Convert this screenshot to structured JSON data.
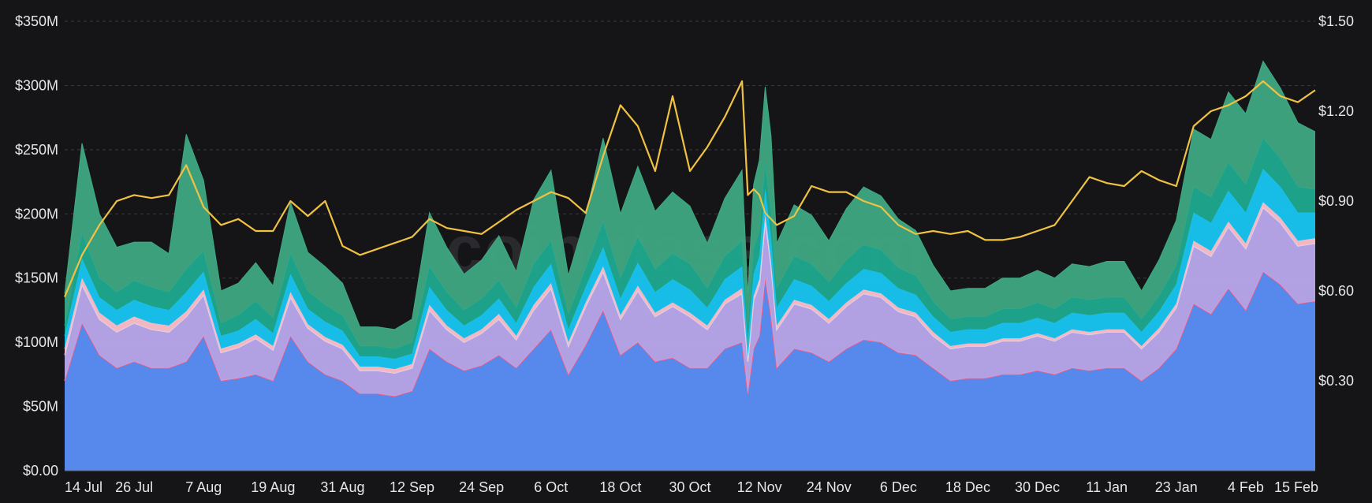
{
  "chart_data": {
    "type": "area",
    "stacked": true,
    "watermark": "coinglass.com",
    "x_ticks": [
      "14 Jul",
      "26 Jul",
      "7 Aug",
      "19 Aug",
      "31 Aug",
      "12 Sep",
      "24 Sep",
      "6 Oct",
      "18 Oct",
      "30 Oct",
      "12 Nov",
      "24 Nov",
      "6 Dec",
      "18 Dec",
      "30 Dec",
      "11 Jan",
      "23 Jan",
      "4 Feb",
      "15 Feb"
    ],
    "y_left": {
      "min": 0,
      "max": 350,
      "ticks": [
        "$0.00",
        "$50M",
        "$100M",
        "$150M",
        "$200M",
        "$250M",
        "$300M",
        "$350M"
      ]
    },
    "y_right": {
      "min": 0,
      "max": 1.5,
      "ticks": [
        "$0.30",
        "$0.60",
        "$0.90",
        "$1.20",
        "$1.50"
      ]
    },
    "grid": true,
    "x_days": [
      0,
      3,
      6,
      9,
      12,
      15,
      18,
      21,
      24,
      27,
      30,
      33,
      36,
      39,
      42,
      45,
      48,
      51,
      54,
      57,
      60,
      63,
      66,
      69,
      72,
      75,
      78,
      81,
      84,
      87,
      90,
      93,
      96,
      99,
      102,
      105,
      108,
      111,
      114,
      117,
      118,
      119,
      120,
      121,
      122,
      123,
      126,
      129,
      132,
      135,
      138,
      141,
      144,
      147,
      150,
      153,
      156,
      159,
      162,
      165,
      168,
      171,
      174,
      177,
      180,
      183,
      186,
      189,
      192,
      195,
      198,
      201,
      204,
      207,
      210,
      213,
      216
    ],
    "series": [
      {
        "color": "#5b8ff9",
        "values": [
          70,
          115,
          90,
          80,
          85,
          80,
          80,
          85,
          105,
          70,
          72,
          75,
          70,
          105,
          85,
          75,
          70,
          60,
          60,
          58,
          62,
          95,
          85,
          78,
          82,
          90,
          80,
          95,
          110,
          75,
          98,
          125,
          90,
          100,
          85,
          88,
          80,
          80,
          95,
          100,
          60,
          95,
          105,
          150,
          120,
          80,
          95,
          92,
          85,
          95,
          102,
          100,
          92,
          90,
          80,
          70,
          72,
          72,
          75,
          75,
          78,
          75,
          80,
          78,
          80,
          80,
          70,
          80,
          95,
          130,
          122,
          142,
          125,
          155,
          145,
          130,
          132
        ]
      },
      {
        "color": "#b9a9ee",
        "values": [
          20,
          30,
          28,
          28,
          30,
          30,
          28,
          35,
          32,
          22,
          24,
          28,
          24,
          30,
          26,
          26,
          25,
          18,
          18,
          18,
          18,
          30,
          25,
          22,
          25,
          28,
          22,
          30,
          32,
          22,
          30,
          30,
          28,
          40,
          35,
          40,
          40,
          30,
          35,
          38,
          25,
          38,
          40,
          45,
          40,
          30,
          35,
          34,
          30,
          33,
          36,
          35,
          32,
          30,
          25,
          25,
          25,
          25,
          26,
          26,
          27,
          26,
          28,
          28,
          28,
          28,
          25,
          28,
          32,
          45,
          45,
          48,
          48,
          50,
          48,
          45,
          45
        ]
      },
      {
        "color": "#ffc0cb",
        "values": [
          5,
          5,
          5,
          5,
          5,
          5,
          5,
          4,
          4,
          3,
          3,
          3,
          3,
          4,
          3,
          3,
          3,
          3,
          3,
          3,
          3,
          4,
          3,
          3,
          3,
          4,
          3,
          4,
          4,
          3,
          3,
          4,
          3,
          4,
          3,
          3,
          3,
          3,
          3,
          4,
          3,
          3,
          4,
          4,
          3,
          3,
          3,
          3,
          3,
          3,
          3,
          3,
          3,
          3,
          3,
          2,
          2,
          2,
          2,
          2,
          2,
          2,
          2,
          2,
          2,
          2,
          2,
          3,
          3,
          4,
          4,
          4,
          4,
          4,
          4,
          4,
          4
        ]
      },
      {
        "color": "#18c6f2",
        "values": [
          10,
          15,
          12,
          12,
          13,
          13,
          12,
          15,
          14,
          10,
          10,
          12,
          10,
          14,
          12,
          12,
          11,
          8,
          8,
          8,
          8,
          14,
          12,
          10,
          11,
          12,
          10,
          14,
          15,
          10,
          12,
          15,
          13,
          18,
          16,
          18,
          18,
          14,
          16,
          17,
          12,
          17,
          18,
          20,
          18,
          14,
          16,
          15,
          14,
          15,
          16,
          16,
          15,
          14,
          12,
          11,
          11,
          11,
          12,
          12,
          12,
          12,
          13,
          13,
          13,
          13,
          11,
          13,
          15,
          22,
          22,
          24,
          24,
          26,
          24,
          22,
          20
        ]
      },
      {
        "color": "#1fa98f",
        "values": [
          8,
          20,
          15,
          14,
          15,
          15,
          14,
          18,
          16,
          10,
          12,
          14,
          12,
          16,
          14,
          13,
          12,
          8,
          8,
          8,
          9,
          16,
          14,
          12,
          13,
          14,
          12,
          18,
          18,
          12,
          15,
          20,
          16,
          20,
          18,
          20,
          20,
          15,
          18,
          20,
          12,
          20,
          20,
          20,
          20,
          15,
          18,
          17,
          15,
          18,
          19,
          18,
          16,
          15,
          12,
          10,
          10,
          10,
          11,
          11,
          12,
          11,
          12,
          12,
          12,
          12,
          10,
          12,
          15,
          20,
          20,
          22,
          22,
          24,
          22,
          20,
          18
        ]
      },
      {
        "color": "#3fa882",
        "values": [
          25,
          70,
          50,
          35,
          30,
          35,
          30,
          105,
          55,
          25,
          25,
          30,
          25,
          40,
          30,
          30,
          25,
          15,
          15,
          15,
          18,
          42,
          35,
          28,
          30,
          35,
          28,
          50,
          55,
          30,
          40,
          65,
          50,
          55,
          45,
          48,
          45,
          35,
          45,
          55,
          25,
          50,
          55,
          60,
          60,
          35,
          40,
          38,
          32,
          40,
          45,
          42,
          38,
          35,
          28,
          22,
          22,
          22,
          24,
          24,
          25,
          24,
          26,
          26,
          28,
          28,
          22,
          28,
          35,
          45,
          45,
          55,
          55,
          60,
          55,
          50,
          45
        ]
      }
    ],
    "price": {
      "color": "#f0c242",
      "values": [
        0.58,
        0.72,
        0.82,
        0.9,
        0.92,
        0.91,
        0.92,
        1.02,
        0.88,
        0.82,
        0.84,
        0.8,
        0.8,
        0.9,
        0.85,
        0.9,
        0.75,
        0.72,
        0.74,
        0.76,
        0.78,
        0.84,
        0.81,
        0.8,
        0.79,
        0.83,
        0.87,
        0.9,
        0.93,
        0.91,
        0.86,
        1.05,
        1.22,
        1.15,
        1.0,
        1.25,
        1.0,
        1.08,
        1.18,
        1.3,
        0.92,
        0.94,
        0.92,
        0.86,
        0.84,
        0.82,
        0.85,
        0.95,
        0.93,
        0.93,
        0.9,
        0.88,
        0.82,
        0.79,
        0.8,
        0.79,
        0.8,
        0.77,
        0.77,
        0.78,
        0.8,
        0.82,
        0.9,
        0.98,
        0.96,
        0.95,
        1.0,
        0.97,
        0.95,
        1.15,
        1.2,
        1.22,
        1.25,
        1.3,
        1.25,
        1.23,
        1.27
      ]
    }
  }
}
